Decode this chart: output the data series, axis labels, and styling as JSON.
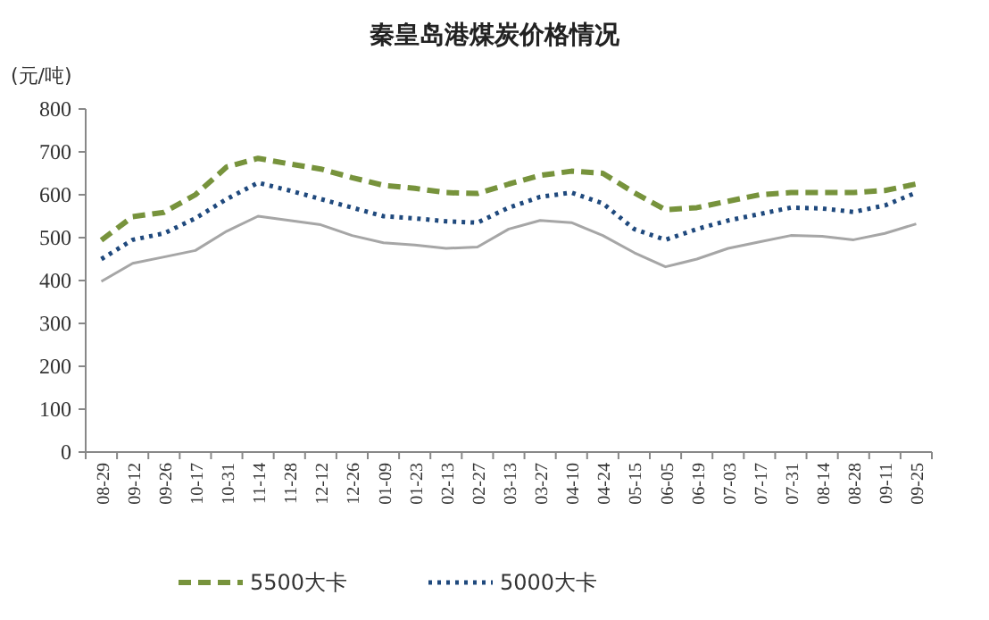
{
  "chart_data": {
    "type": "line",
    "title": "秦皇岛港煤炭价格情况",
    "ylabel": "(元/吨)",
    "categories": [
      "08-29",
      "09-12",
      "09-26",
      "10-17",
      "10-31",
      "11-14",
      "11-28",
      "12-12",
      "12-26",
      "01-09",
      "01-23",
      "02-13",
      "02-27",
      "03-13",
      "03-27",
      "04-10",
      "04-24",
      "05-15",
      "06-05",
      "06-19",
      "07-03",
      "07-17",
      "07-31",
      "08-14",
      "08-28",
      "09-11",
      "09-25"
    ],
    "series": [
      {
        "name": "5500大卡",
        "color": "#77933c",
        "line_style": "dashed",
        "values": [
          494,
          549,
          559,
          600,
          665,
          685,
          672,
          660,
          640,
          622,
          615,
          605,
          603,
          625,
          645,
          655,
          650,
          605,
          565,
          570,
          585,
          600,
          605,
          605,
          605,
          610,
          625
        ]
      },
      {
        "name": "5000大卡",
        "color": "#1f497d",
        "line_style": "dotted",
        "values": [
          450,
          495,
          510,
          545,
          590,
          628,
          610,
          590,
          570,
          550,
          545,
          538,
          535,
          570,
          595,
          605,
          580,
          520,
          495,
          520,
          540,
          555,
          570,
          568,
          560,
          575,
          605
        ]
      },
      {
        "color": "#a6a6a6",
        "line_style": "solid",
        "values": [
          398,
          440,
          455,
          470,
          515,
          550,
          540,
          530,
          505,
          488,
          483,
          475,
          478,
          520,
          540,
          535,
          505,
          465,
          432,
          450,
          475,
          490,
          505,
          503,
          495,
          510,
          532
        ]
      }
    ],
    "ylim": [
      0,
      800
    ],
    "yticks": [
      0,
      100,
      200,
      300,
      400,
      500,
      600,
      700,
      800
    ],
    "grid": false,
    "legend": "bottom"
  }
}
